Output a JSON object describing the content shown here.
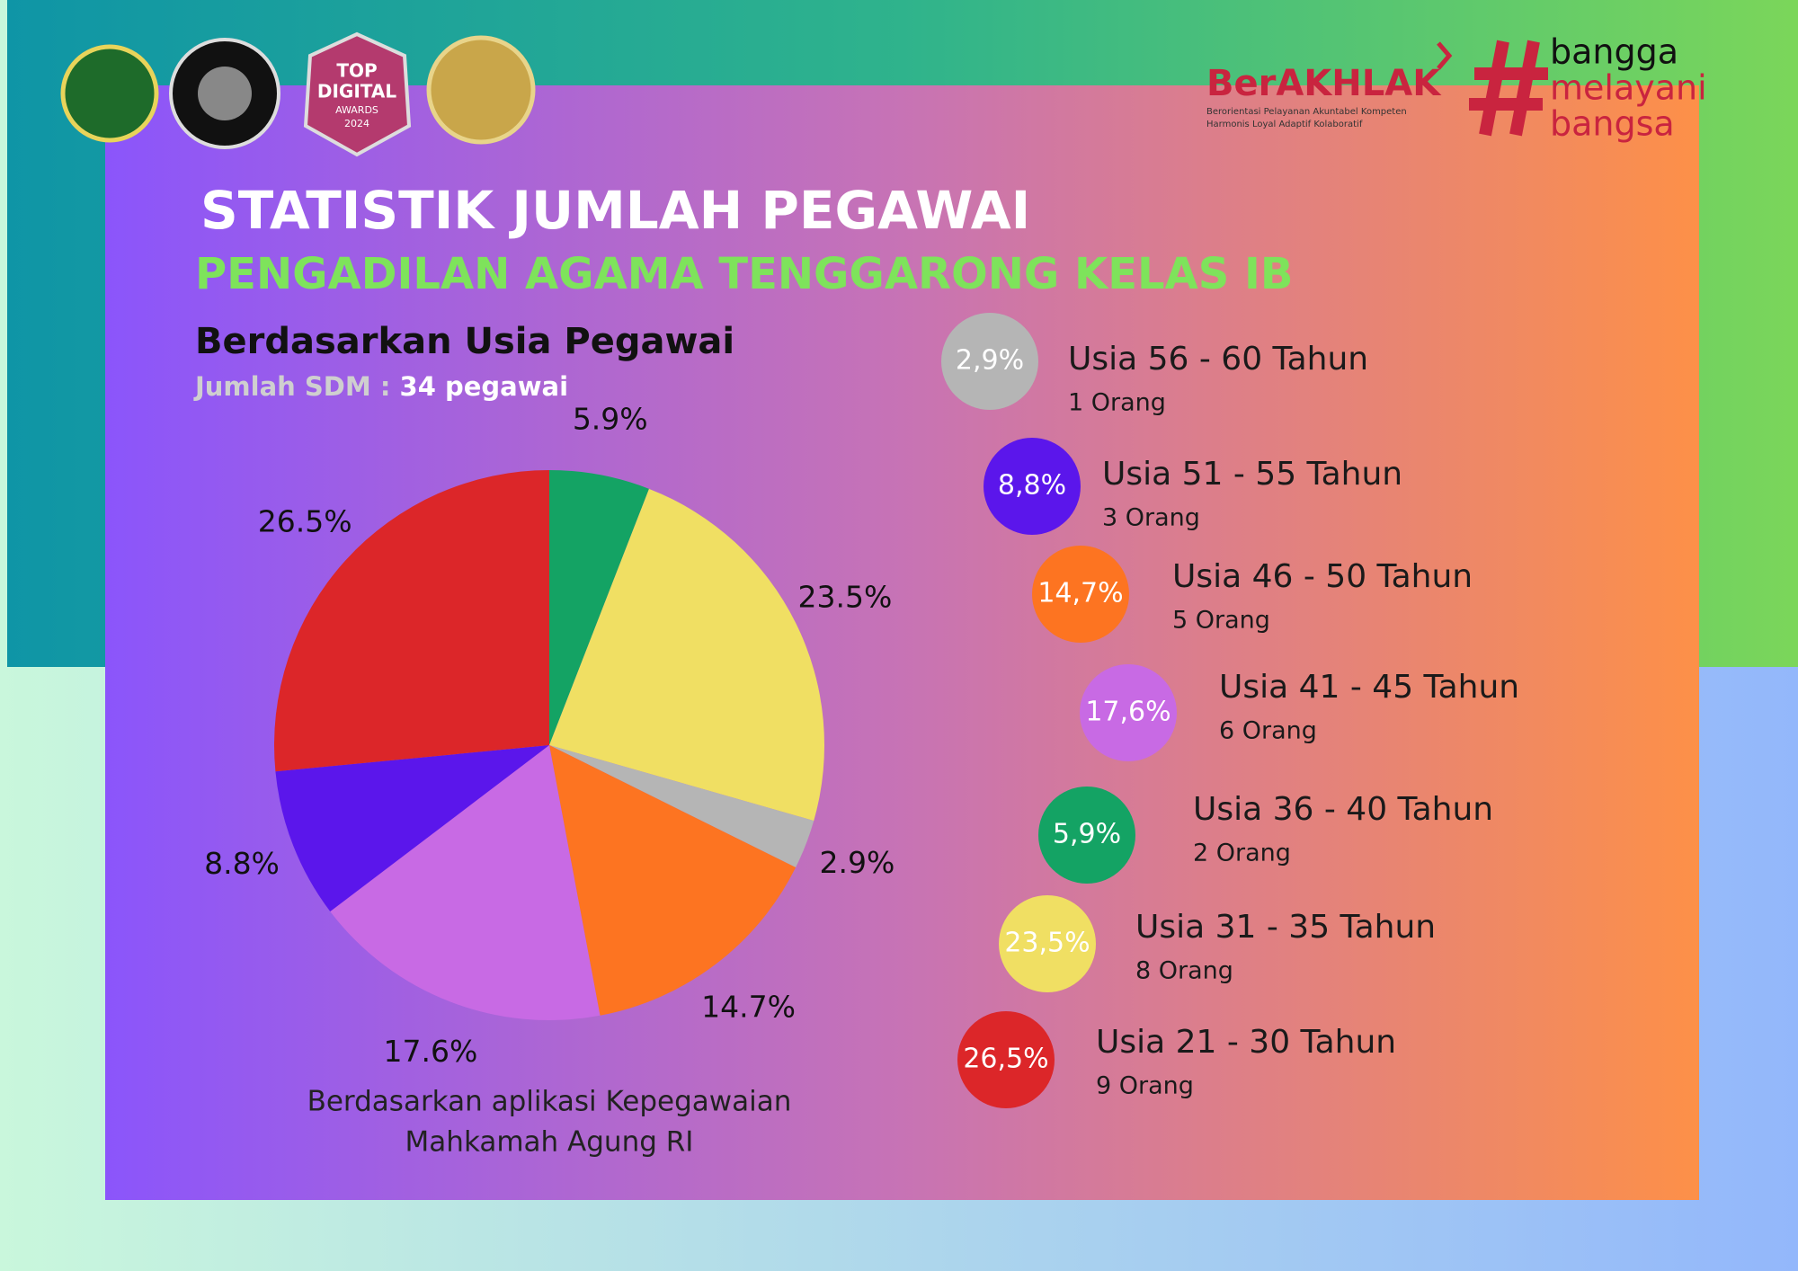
{
  "header": {
    "logo_award": [
      "TOP",
      "DIGITAL",
      "AWARDS",
      "2024"
    ],
    "berakhlak": "BerAKHLAK",
    "berakhlak_line1": "Berorientasi Pelayanan Akuntabel Kompeten",
    "berakhlak_line2": "Harmonis Loyal Adaptif Kolaboratif",
    "slogan": [
      "bangga",
      "melayani",
      "bangsa"
    ]
  },
  "title": "STATISTIK JUMLAH PEGAWAI",
  "subtitle": "PENGADILAN AGAMA TENGGARONG KELAS IB",
  "section_title": "Berdasarkan Usia Pegawai",
  "total_label": "Jumlah SDM :",
  "total_value": "34 pegawai",
  "chart_data": {
    "type": "pie",
    "values": [
      5.9,
      23.5,
      2.9,
      14.7,
      17.6,
      8.8,
      26.5
    ],
    "value_labels": [
      "5.9%",
      "23.5%",
      "2.9%",
      "14.7%",
      "17.6%",
      "8.8%",
      "26.5%"
    ],
    "colors": [
      "#14a364",
      "#f0df63",
      "#b5b5b5",
      "#fd7421",
      "#c86ae4",
      "#5b16eb",
      "#dc2629"
    ]
  },
  "source_note": [
    "Berdasarkan aplikasi Kepegawaian",
    "Mahkamah Agung RI"
  ],
  "age_groups": [
    {
      "percent": "2,9%",
      "label": "Usia 56 - 60 Tahun",
      "count": "1 Orang",
      "color": "#b5b5b5"
    },
    {
      "percent": "8,8%",
      "label": "Usia 51 - 55 Tahun",
      "count": "3 Orang",
      "color": "#5b16eb"
    },
    {
      "percent": "14,7%",
      "label": "Usia 46 - 50 Tahun",
      "count": "5 Orang",
      "color": "#fd7421"
    },
    {
      "percent": "17,6%",
      "label": "Usia 41 - 45 Tahun",
      "count": "6 Orang",
      "color": "#c86ae4"
    },
    {
      "percent": "5,9%",
      "label": "Usia 36 - 40 Tahun",
      "count": "2 Orang",
      "color": "#14a364"
    },
    {
      "percent": "23,5%",
      "label": "Usia 31 - 35 Tahun",
      "count": "8 Orang",
      "color": "#f0df63"
    },
    {
      "percent": "26,5%",
      "label": "Usia 21 - 30 Tahun",
      "count": "9 Orang",
      "color": "#dc2629"
    }
  ]
}
